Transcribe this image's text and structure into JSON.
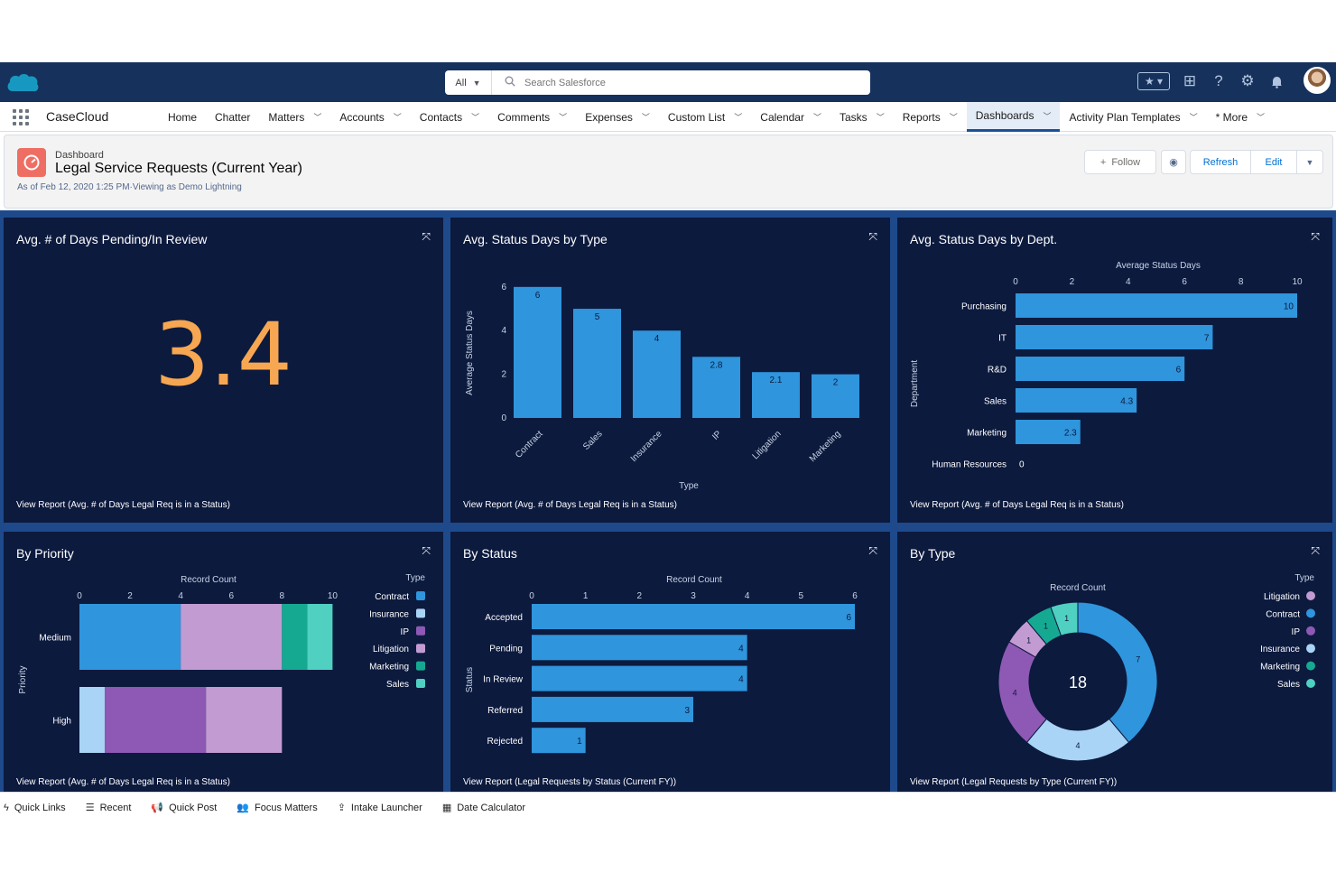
{
  "app": {
    "name": "CaseCloud"
  },
  "search": {
    "scope": "All",
    "placeholder": "Search Salesforce"
  },
  "nav": {
    "items": [
      {
        "label": "Home",
        "menu": false
      },
      {
        "label": "Chatter",
        "menu": false
      },
      {
        "label": "Matters",
        "menu": true
      },
      {
        "label": "Accounts",
        "menu": true
      },
      {
        "label": "Contacts",
        "menu": true
      },
      {
        "label": "Comments",
        "menu": true
      },
      {
        "label": "Expenses",
        "menu": true
      },
      {
        "label": "Custom List",
        "menu": true
      },
      {
        "label": "Calendar",
        "menu": true
      },
      {
        "label": "Tasks",
        "menu": true
      },
      {
        "label": "Reports",
        "menu": true
      },
      {
        "label": "Dashboards",
        "menu": true,
        "active": true
      },
      {
        "label": "Activity Plan Templates",
        "menu": true
      },
      {
        "label": "* More",
        "menu": true
      }
    ]
  },
  "header": {
    "object_label": "Dashboard",
    "title": "Legal Service Requests (Current Year)",
    "meta": "As of Feb 12, 2020 1:25 PM·Viewing as Demo Lightning",
    "follow": "Follow",
    "refresh": "Refresh",
    "edit": "Edit"
  },
  "colors": {
    "topbar": "#16325c",
    "panel_bg": "#0c1a3e",
    "canvas_bg": "#1e4a8c",
    "bar_blue": "#2f95dc",
    "metric_orange": "#f7a751",
    "contract": "#2f95dc",
    "insurance": "#a9d4f5",
    "ip": "#8e59b5",
    "litigation": "#c39bd3",
    "marketing": "#16a991",
    "sales": "#4fd0c1"
  },
  "widgets": {
    "w1": {
      "title": "Avg. # of Days Pending/In Review",
      "value": "3.4",
      "link": "View Report (Avg. # of Days Legal Req is in a Status)"
    },
    "w2": {
      "title": "Avg. Status Days by Type",
      "link": "View Report (Avg. # of Days Legal Req is in a Status)"
    },
    "w3": {
      "title": "Avg. Status Days by Dept.",
      "link": "View Report (Avg. # of Days Legal Req is in a Status)"
    },
    "w4": {
      "title": "By Priority",
      "link": "View Report (Avg. # of Days Legal Req is in a Status)"
    },
    "w5": {
      "title": "By Status",
      "link": "View Report (Legal Requests by Status (Current FY))"
    },
    "w6": {
      "title": "By Type",
      "link": "View Report (Legal Requests by Type (Current FY))"
    }
  },
  "chart_data": [
    {
      "id": "status_by_type",
      "type": "bar",
      "categories": [
        "Contract",
        "Sales",
        "Insurance",
        "IP",
        "Litigation",
        "Marketing"
      ],
      "values": [
        6,
        5,
        4,
        2.8,
        2.1,
        2
      ],
      "value_labels": [
        "6",
        "5",
        "4",
        "2.8",
        "2.1",
        "2"
      ],
      "xlabel": "Type",
      "ylabel": "Average Status Days",
      "yticks": [
        "0",
        "2",
        "4",
        "6"
      ],
      "ylim": [
        0,
        6.2
      ]
    },
    {
      "id": "status_by_dept",
      "type": "bar",
      "orientation": "horizontal",
      "categories": [
        "Purchasing",
        "IT",
        "R&D",
        "Sales",
        "Marketing",
        "Human Resources"
      ],
      "values": [
        10,
        7,
        6,
        4.3,
        2.3,
        0
      ],
      "value_labels": [
        "10",
        "7",
        "6",
        "4.3",
        "2.3",
        "0"
      ],
      "xlabel": "Average Status Days",
      "ylabel": "Department",
      "xticks": [
        "0",
        "2",
        "4",
        "6",
        "8",
        "10"
      ],
      "xlim": [
        0,
        10
      ]
    },
    {
      "id": "by_priority",
      "type": "bar",
      "orientation": "horizontal",
      "stacked": true,
      "categories": [
        "Medium",
        "High"
      ],
      "xlabel": "Record Count",
      "ylabel": "Priority",
      "legend_title": "Type",
      "xticks": [
        "0",
        "2",
        "4",
        "6",
        "8",
        "10"
      ],
      "xlim": [
        0,
        10.2
      ],
      "series": [
        {
          "name": "Contract",
          "color": "#2f95dc",
          "values": [
            4,
            0
          ]
        },
        {
          "name": "Insurance",
          "color": "#a9d4f5",
          "values": [
            0,
            1
          ]
        },
        {
          "name": "IP",
          "color": "#8e59b5",
          "values": [
            0,
            4
          ]
        },
        {
          "name": "Litigation",
          "color": "#c39bd3",
          "values": [
            4,
            3
          ]
        },
        {
          "name": "Marketing",
          "color": "#16a991",
          "values": [
            1,
            0
          ]
        },
        {
          "name": "Sales",
          "color": "#4fd0c1",
          "values": [
            1,
            0
          ]
        }
      ]
    },
    {
      "id": "by_status",
      "type": "bar",
      "orientation": "horizontal",
      "categories": [
        "Accepted",
        "Pending",
        "In Review",
        "Referred",
        "Rejected"
      ],
      "values": [
        6,
        4,
        4,
        3,
        1
      ],
      "value_labels": [
        "6",
        "4",
        "4",
        "3",
        "1"
      ],
      "xlabel": "Record Count",
      "ylabel": "Status",
      "xticks": [
        "0",
        "1",
        "2",
        "3",
        "4",
        "5",
        "6"
      ],
      "xlim": [
        0,
        6
      ]
    },
    {
      "id": "by_type",
      "type": "pie",
      "donut": true,
      "title": "Record Count",
      "total": "18",
      "legend_title": "Type",
      "slices": [
        {
          "name": "Contract",
          "value": 7,
          "label": "7",
          "color": "#2f95dc"
        },
        {
          "name": "Insurance",
          "value": 4,
          "label": "4",
          "color": "#a9d4f5"
        },
        {
          "name": "IP",
          "value": 4,
          "label": "4",
          "color": "#8e59b5"
        },
        {
          "name": "Litigation",
          "value": 1,
          "label": "1",
          "color": "#c39bd3"
        },
        {
          "name": "Marketing",
          "value": 1,
          "label": "1",
          "color": "#16a991"
        },
        {
          "name": "Sales",
          "value": 1,
          "label": "1",
          "color": "#4fd0c1"
        }
      ]
    }
  ],
  "footer": {
    "items": [
      {
        "label": "Quick Links",
        "icon": "bolt-icon"
      },
      {
        "label": "Recent",
        "icon": "list-icon"
      },
      {
        "label": "Quick Post",
        "icon": "megaphone-icon"
      },
      {
        "label": "Focus Matters",
        "icon": "people-icon"
      },
      {
        "label": "Intake Launcher",
        "icon": "upload-icon"
      },
      {
        "label": "Date Calculator",
        "icon": "calendar-icon"
      }
    ]
  }
}
